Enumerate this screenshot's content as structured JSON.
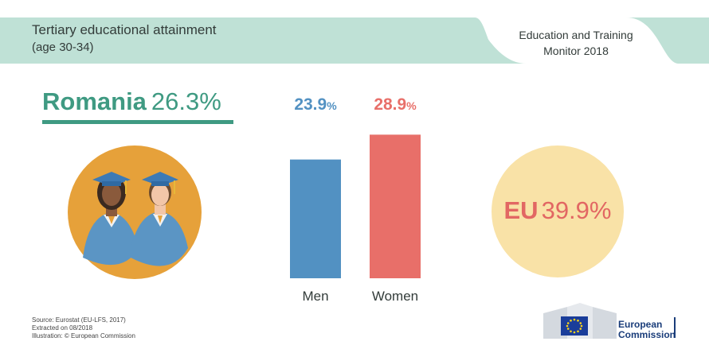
{
  "header": {
    "title": "Tertiary educational attainment",
    "subtitle": "(age 30-34)",
    "monitor_line1": "Education and Training",
    "monitor_line2": "Monitor 2018",
    "band_color": "#bfe1d6"
  },
  "country": {
    "name": "Romania",
    "value": "26.3%",
    "color": "#3f9a82"
  },
  "illustration": {
    "icon": "graduates-icon",
    "circle_color": "#e6a13a",
    "gown_color": "#5b95c4",
    "cap_color": "#3d7ab5"
  },
  "chart_data": {
    "type": "bar",
    "categories": [
      "Men",
      "Women"
    ],
    "values": [
      23.9,
      28.9
    ],
    "value_labels": [
      "23.9",
      "28.9"
    ],
    "unit": "%",
    "colors": [
      "#5291c2",
      "#e86f69"
    ],
    "ylim": [
      0,
      32
    ],
    "grid": false,
    "title": "",
    "xlabel": "",
    "ylabel": ""
  },
  "eu": {
    "code": "EU",
    "value": "39.9%",
    "circle_color": "#f9e2a7",
    "text_color": "#e26763"
  },
  "footer": {
    "source_lines": [
      "Source: Eurostat (EU-LFS, 2017)",
      "Extracted on 08/2018",
      "Illustration: © European Commission"
    ],
    "logo_line1": "European",
    "logo_line2": "Commission"
  }
}
